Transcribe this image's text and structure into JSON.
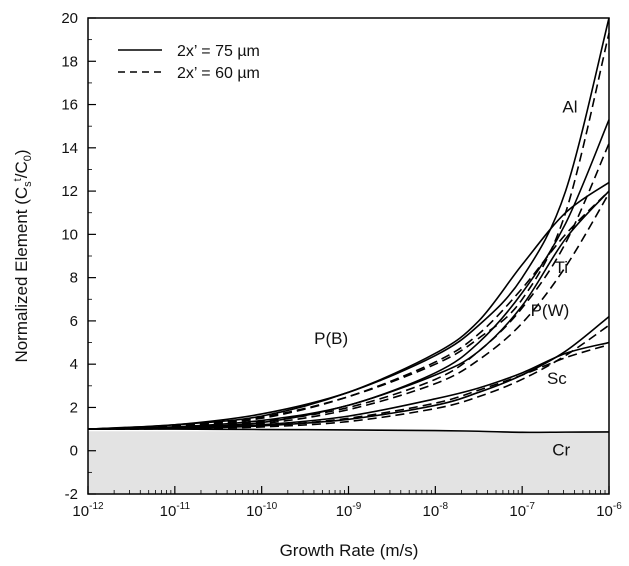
{
  "chart_data": {
    "type": "line",
    "x_scale": "log10",
    "xlim": [
      -12,
      -6
    ],
    "ylim": [
      -2,
      20
    ],
    "x_ticks": [
      -12,
      -11,
      -10,
      -9,
      -8,
      -7,
      -6
    ],
    "y_ticks": [
      -2,
      0,
      2,
      4,
      6,
      8,
      10,
      12,
      14,
      16,
      18,
      20
    ],
    "xlabel": "Growth Rate (m/s)",
    "ylabel": {
      "prefix": "Normalized Element (C",
      "sub1": "s",
      "sup1": "t",
      "mid": "/C",
      "sub2": "0",
      "suffix": ")"
    },
    "shaded_region": {
      "y_from": -2,
      "y_to": 0.9,
      "color": "#e3e3e3"
    },
    "legend": {
      "position": "top-left",
      "entries": [
        {
          "label": "2x’ = 75 µm",
          "style": "solid"
        },
        {
          "label": "2x’ = 60 µm",
          "style": "dashed"
        }
      ]
    },
    "curve_labels": [
      {
        "text": "Al",
        "x": -6.45,
        "y": 15.9
      },
      {
        "text": "Ti",
        "x": -6.55,
        "y": 8.5
      },
      {
        "text": "P(W)",
        "x": -6.68,
        "y": 6.5
      },
      {
        "text": "P(B)",
        "x": -9.2,
        "y": 5.2
      },
      {
        "text": "Sc",
        "x": -6.6,
        "y": 3.35
      },
      {
        "text": "Cr",
        "x": -6.55,
        "y": 0.05
      }
    ],
    "series": [
      {
        "element": "Al",
        "style": "solid",
        "x": [
          -12,
          -11,
          -10,
          -9,
          -8,
          -7.5,
          -7,
          -6.5,
          -6
        ],
        "y": [
          1.0,
          1.2,
          1.7,
          2.7,
          4.4,
          5.8,
          8.0,
          12.0,
          20.0
        ]
      },
      {
        "element": "Al",
        "style": "dashed",
        "x": [
          -12,
          -11,
          -10,
          -9,
          -8,
          -7.5,
          -7,
          -6.5,
          -6
        ],
        "y": [
          1.0,
          1.15,
          1.55,
          2.5,
          4.0,
          5.2,
          7.0,
          11.0,
          19.3
        ]
      },
      {
        "element": "Ti",
        "style": "solid",
        "x": [
          -12,
          -11,
          -10,
          -9,
          -8,
          -7.5,
          -7,
          -6.5,
          -6
        ],
        "y": [
          1.0,
          1.1,
          1.4,
          2.1,
          3.6,
          5.0,
          7.3,
          10.5,
          15.3
        ]
      },
      {
        "element": "Ti",
        "style": "dashed",
        "x": [
          -12,
          -11,
          -10,
          -9,
          -8,
          -7.5,
          -7,
          -6.5,
          -6
        ],
        "y": [
          1.0,
          1.08,
          1.35,
          2.0,
          3.3,
          4.6,
          6.6,
          9.6,
          14.2
        ]
      },
      {
        "element": "P(B)",
        "style": "solid",
        "x": [
          -12,
          -11,
          -10,
          -9,
          -8,
          -7.5,
          -7,
          -6.5,
          -6
        ],
        "y": [
          1.0,
          1.2,
          1.6,
          2.7,
          4.5,
          6.0,
          8.6,
          11.0,
          12.4
        ]
      },
      {
        "element": "P(B)",
        "style": "dashed",
        "x": [
          -12,
          -11,
          -10,
          -9,
          -8,
          -7.5,
          -7,
          -6.5,
          -6
        ],
        "y": [
          1.0,
          1.15,
          1.5,
          2.5,
          4.1,
          5.4,
          7.5,
          10.0,
          12.0
        ]
      },
      {
        "element": "P(W)",
        "style": "solid",
        "x": [
          -12,
          -11,
          -10,
          -9,
          -8,
          -7.5,
          -7,
          -6.5,
          -6
        ],
        "y": [
          1.0,
          1.1,
          1.3,
          2.1,
          3.5,
          4.6,
          6.7,
          9.8,
          12.0
        ]
      },
      {
        "element": "P(W)",
        "style": "dashed",
        "x": [
          -12,
          -11,
          -10,
          -9,
          -8,
          -7.5,
          -7,
          -6.5,
          -6
        ],
        "y": [
          1.0,
          1.05,
          1.25,
          1.9,
          3.1,
          4.2,
          5.9,
          8.5,
          11.9
        ]
      },
      {
        "element": "Sc",
        "style": "solid",
        "x": [
          -12,
          -11,
          -10,
          -9,
          -8,
          -7.5,
          -7,
          -6.5,
          -6
        ],
        "y": [
          1.0,
          1.05,
          1.2,
          1.6,
          2.4,
          2.9,
          3.6,
          4.5,
          5.0
        ]
      },
      {
        "element": "Sc",
        "style": "dashed",
        "x": [
          -12,
          -11,
          -10,
          -9,
          -8,
          -7.5,
          -7,
          -6.5,
          -6
        ],
        "y": [
          1.0,
          1.03,
          1.15,
          1.5,
          2.2,
          2.8,
          3.5,
          4.3,
          4.9
        ]
      },
      {
        "element": "Sc-upper",
        "style": "solid",
        "x": [
          -12,
          -11,
          -10,
          -9,
          -8,
          -7.5,
          -7,
          -6.5,
          -6
        ],
        "y": [
          1.0,
          1.03,
          1.15,
          1.45,
          2.1,
          2.7,
          3.5,
          4.6,
          6.2
        ]
      },
      {
        "element": "Sc-upper",
        "style": "dashed",
        "x": [
          -12,
          -11,
          -10,
          -9,
          -8,
          -7.5,
          -7,
          -6.5,
          -6
        ],
        "y": [
          1.0,
          1.02,
          1.1,
          1.35,
          1.95,
          2.5,
          3.3,
          4.4,
          5.8
        ]
      },
      {
        "element": "Cr",
        "style": "solid",
        "x": [
          -12,
          -11,
          -10,
          -9,
          -8,
          -7.5,
          -7,
          -6.5,
          -6
        ],
        "y": [
          1.0,
          1.0,
          0.98,
          0.96,
          0.93,
          0.9,
          0.85,
          0.86,
          0.87
        ]
      }
    ]
  }
}
